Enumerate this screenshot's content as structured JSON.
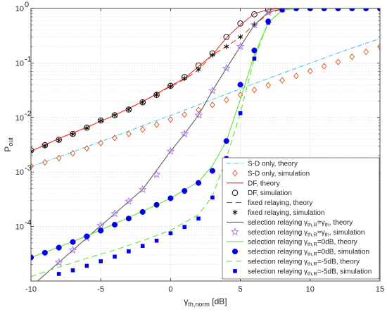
{
  "chart_data": {
    "type": "line",
    "title": "",
    "xlabel": {
      "main": "γ",
      "sub": "th,norm",
      "unit": " [dB]"
    },
    "ylabel": {
      "main": "P",
      "sub": "out"
    },
    "xlim": [
      -10,
      15
    ],
    "ylim": [
      1e-05,
      1
    ],
    "yscale": "log",
    "grid": true,
    "legend_position": "lower-right",
    "x_ticks": [
      -10,
      -5,
      0,
      5,
      10,
      15
    ],
    "x_tick_labels": [
      "-10",
      "-5",
      "0",
      "5",
      "10",
      "15"
    ],
    "y_ticks": [
      0.0001,
      0.001,
      0.01,
      0.1,
      1
    ],
    "y_tick_labels": [
      {
        "base": "10",
        "exp": "-4"
      },
      {
        "base": "10",
        "exp": "-3"
      },
      {
        "base": "10",
        "exp": "-2"
      },
      {
        "base": "10",
        "exp": "-1"
      },
      {
        "base": "10",
        "exp": "0"
      }
    ],
    "series": [
      {
        "name": "S-D only, theory",
        "kind": "line",
        "color": "#4DBEEE",
        "dash": "6,2,1,2",
        "x": [
          -10,
          -7.5,
          -5,
          -2.5,
          0,
          2.5,
          5,
          7.5,
          10,
          12.5,
          15
        ],
        "y": [
          0.00125,
          0.0021,
          0.0036,
          0.0063,
          0.0109,
          0.0191,
          0.0335,
          0.058,
          0.099,
          0.17,
          0.28
        ]
      },
      {
        "name": "S-D only, simulation",
        "kind": "diamond-open",
        "color": "#D95319",
        "x": [
          -10,
          -9,
          -8,
          -7,
          -6,
          -5,
          -4,
          -3,
          -2,
          -1,
          0,
          1,
          2,
          3,
          4,
          5,
          6,
          7,
          8,
          9,
          10,
          11,
          12,
          13,
          14,
          15
        ],
        "y": [
          0.00128,
          0.0015,
          0.0018,
          0.0022,
          0.0027,
          0.0034,
          0.0042,
          0.005,
          0.006,
          0.0074,
          0.0092,
          0.0113,
          0.0138,
          0.017,
          0.021,
          0.026,
          0.032,
          0.039,
          0.048,
          0.058,
          0.071,
          0.087,
          0.104,
          0.13,
          0.16,
          0.2
        ]
      },
      {
        "name": "DF, theory",
        "kind": "line",
        "color": "#E8372C",
        "dash": "",
        "x": [
          -10,
          -8,
          -6,
          -4,
          -2,
          0,
          1,
          2,
          3,
          4,
          5,
          6,
          7,
          8,
          9,
          10,
          15
        ],
        "y": [
          0.0024,
          0.0041,
          0.0066,
          0.011,
          0.0195,
          0.038,
          0.052,
          0.086,
          0.14,
          0.29,
          0.5,
          0.8,
          0.96,
          0.999,
          1,
          1,
          1
        ]
      },
      {
        "name": "DF, simulation",
        "kind": "circle-open",
        "color": "#000000",
        "x": [
          -10,
          -9,
          -8,
          -7,
          -6,
          -5,
          -4,
          -3,
          -2,
          -1,
          0,
          1,
          2,
          3,
          4,
          5,
          6,
          7
        ],
        "y": [
          0.0025,
          0.0031,
          0.0039,
          0.005,
          0.0065,
          0.0088,
          0.011,
          0.014,
          0.019,
          0.026,
          0.038,
          0.055,
          0.09,
          0.15,
          0.3,
          0.53,
          0.78,
          0.96
        ]
      },
      {
        "name": "fixed relaying, theory",
        "kind": "line",
        "color": "#E8372C",
        "dash": "8,5",
        "x": [
          -10,
          -8,
          -6,
          -4,
          -2,
          0,
          1,
          2,
          3,
          4,
          5,
          6,
          7,
          8,
          9,
          10,
          15
        ],
        "y": [
          0.0024,
          0.0041,
          0.0066,
          0.011,
          0.0195,
          0.037,
          0.05,
          0.075,
          0.14,
          0.2,
          0.3,
          0.5,
          0.8,
          0.99,
          1,
          1,
          1
        ]
      },
      {
        "name": "fixed relaying, simulation",
        "kind": "asterisk",
        "color": "#000000",
        "x": [
          -10,
          -9,
          -8,
          -7,
          -6,
          -5,
          -4,
          -3,
          -2,
          -1,
          0,
          1,
          2,
          3,
          4,
          5,
          6
        ],
        "y": [
          0.0024,
          0.003,
          0.0038,
          0.0049,
          0.0064,
          0.0088,
          0.011,
          0.014,
          0.019,
          0.026,
          0.037,
          0.052,
          0.075,
          0.14,
          0.2,
          0.3,
          0.5
        ]
      },
      {
        "name": "selection relaying γ_th,R=γ_th, theory",
        "kind": "line",
        "color": "#5E5E5E",
        "dash": "",
        "x": [
          -10,
          -8,
          -6,
          -4,
          -2,
          0,
          1,
          2,
          3,
          4,
          5,
          6,
          7,
          8,
          9,
          10,
          15
        ],
        "y": [
          7.8e-06,
          2.2e-05,
          6.2e-05,
          0.000172,
          0.00048,
          0.0024,
          0.005,
          0.011,
          0.031,
          0.08,
          0.2,
          0.5,
          0.85,
          0.99,
          1,
          1,
          1
        ]
      },
      {
        "name": "selection relaying γ_th,R=γ_th, simulation",
        "kind": "star-open",
        "color": "#B070E0",
        "x": [
          -8,
          -7,
          -6,
          -5,
          -4,
          -3,
          -2,
          -1,
          0,
          1,
          2,
          3,
          4,
          5,
          6,
          7,
          8
        ],
        "y": [
          2.2e-05,
          3.7e-05,
          6.2e-05,
          0.000104,
          0.000172,
          0.00029,
          0.00048,
          0.0009,
          0.0024,
          0.005,
          0.011,
          0.031,
          0.08,
          0.2,
          0.5,
          0.85,
          0.99
        ]
      },
      {
        "name": "selection relaying γ_th,R=0dB, theory",
        "kind": "line",
        "color": "#66E033",
        "dash": "",
        "x": [
          -10,
          -8,
          -6,
          -4,
          -2,
          0,
          2,
          3,
          4,
          5,
          6,
          7,
          8,
          9,
          10,
          15
        ],
        "y": [
          2.7e-05,
          4.2e-05,
          6.7e-05,
          0.000112,
          0.00019,
          0.00033,
          0.00066,
          0.0013,
          0.0037,
          0.0215,
          0.14,
          0.55,
          0.93,
          1,
          1,
          1
        ]
      },
      {
        "name": "selection relaying γ_th,R=0dB, simulation",
        "kind": "circle-filled",
        "color": "#0000EE",
        "x": [
          -10,
          -9,
          -8,
          -7,
          -6,
          -5,
          -4,
          -3,
          -2,
          -1,
          0,
          1,
          2,
          3,
          4,
          5,
          6,
          7,
          8,
          9,
          10,
          11,
          12,
          13,
          14,
          15
        ],
        "y": [
          2.7e-05,
          3.3e-05,
          4.1e-05,
          5.2e-05,
          6.6e-05,
          8.4e-05,
          0.000108,
          0.00014,
          0.000185,
          0.00025,
          0.00033,
          0.00045,
          0.00063,
          0.00105,
          0.0037,
          0.04,
          0.17,
          0.58,
          0.95,
          1,
          1,
          1,
          1,
          1,
          1,
          1
        ]
      },
      {
        "name": "selection relaying γ_th,R=-5dB, theory",
        "kind": "line",
        "color": "#66E033",
        "dash": "8,5",
        "x": [
          -10,
          -8,
          -6,
          -4,
          -2,
          0,
          2,
          3,
          4,
          5,
          6,
          7,
          8,
          9,
          10,
          15
        ],
        "y": [
          1.2e-05,
          1.8e-05,
          2.6e-05,
          3.7e-05,
          5.5e-05,
          8.5e-05,
          0.000165,
          0.00036,
          0.0018,
          0.012,
          0.12,
          0.55,
          0.93,
          1,
          1,
          1
        ]
      },
      {
        "name": "selection relaying γ_th,R=-5dB, simulation",
        "kind": "square-filled",
        "color": "#0000EE",
        "x": [
          -8,
          -7,
          -6,
          -5,
          -4,
          -3,
          -2,
          -1,
          0,
          1,
          2,
          3,
          4,
          5,
          6,
          7,
          8,
          9,
          10,
          11,
          12,
          13,
          14,
          15
        ],
        "y": [
          1.35e-05,
          1.57e-05,
          1.9e-05,
          2.3e-05,
          2.8e-05,
          3.5e-05,
          4.4e-05,
          5.5e-05,
          7.5e-05,
          9.8e-05,
          0.00014,
          0.00034,
          0.0018,
          0.012,
          0.12,
          0.55,
          0.93,
          1,
          1,
          1,
          1,
          1,
          1,
          1
        ]
      }
    ],
    "legend": [
      {
        "kind": "line",
        "color": "#4DBEEE",
        "dash": "6,2,1,2",
        "text": "S-D only, theory"
      },
      {
        "kind": "diamond-open",
        "color": "#D95319",
        "text": "S-D only, simulation"
      },
      {
        "kind": "line",
        "color": "#E8372C",
        "dash": "",
        "text": "DF, theory"
      },
      {
        "kind": "circle-open",
        "color": "#000000",
        "text": "DF, simulation"
      },
      {
        "kind": "line",
        "color": "#E8372C",
        "dash": "8,5",
        "text": "fixed relaying, theory"
      },
      {
        "kind": "asterisk",
        "color": "#000000",
        "text": "fixed relaying, simulation"
      },
      {
        "kind": "line",
        "color": "#5E5E5E",
        "dash": "",
        "pre": "selection relaying  ",
        "g": "γ",
        "sub": "th,R",
        "mid": "=",
        "g2": "γ",
        "sub2": "th",
        "post": ", theory"
      },
      {
        "kind": "star-open",
        "color": "#B070E0",
        "pre": "selection relaying  ",
        "g": "γ",
        "sub": "th,R",
        "mid": "=",
        "g2": "γ",
        "sub2": "th",
        "post": ", simulation"
      },
      {
        "kind": "line",
        "color": "#66E033",
        "dash": "",
        "pre": "selection relaying  ",
        "g": "γ",
        "sub": "th,R",
        "mid": "=0dB, theory"
      },
      {
        "kind": "circle-filled",
        "color": "#0000EE",
        "pre": "selection relaying  ",
        "g": "γ",
        "sub": "th,R",
        "mid": "=0dB, simulation"
      },
      {
        "kind": "line",
        "color": "#66E033",
        "dash": "8,5",
        "pre": "selection relaying  ",
        "g": "γ",
        "sub": "th,R",
        "mid": "=-5dB, theory"
      },
      {
        "kind": "square-filled",
        "color": "#0000EE",
        "pre": "selection relaying  ",
        "g": "γ",
        "sub": "th,R",
        "mid": "=-5dB, simulation"
      }
    ]
  }
}
